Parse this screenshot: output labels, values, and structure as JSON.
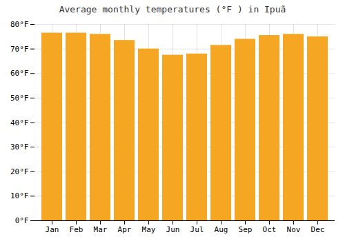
{
  "chart_data": {
    "type": "bar",
    "title": "Average monthly temperatures (°F ) in Ipuã",
    "categories": [
      "Jan",
      "Feb",
      "Mar",
      "Apr",
      "May",
      "Jun",
      "Jul",
      "Aug",
      "Sep",
      "Oct",
      "Nov",
      "Dec"
    ],
    "values": [
      76.5,
      76.5,
      76.0,
      73.5,
      70.0,
      67.5,
      68.0,
      71.5,
      74.0,
      75.5,
      76.0,
      75.0
    ],
    "color": "#F5A623",
    "ylim": [
      0,
      80
    ],
    "yticks": [
      {
        "value": 0,
        "label": "0°F"
      },
      {
        "value": 10,
        "label": "10°F"
      },
      {
        "value": 20,
        "label": "20°F"
      },
      {
        "value": 30,
        "label": "30°F"
      },
      {
        "value": 40,
        "label": "40°F"
      },
      {
        "value": 50,
        "label": "50°F"
      },
      {
        "value": 60,
        "label": "60°F"
      },
      {
        "value": 70,
        "label": "70°F"
      },
      {
        "value": 80,
        "label": "80°F"
      }
    ],
    "grid": true
  }
}
